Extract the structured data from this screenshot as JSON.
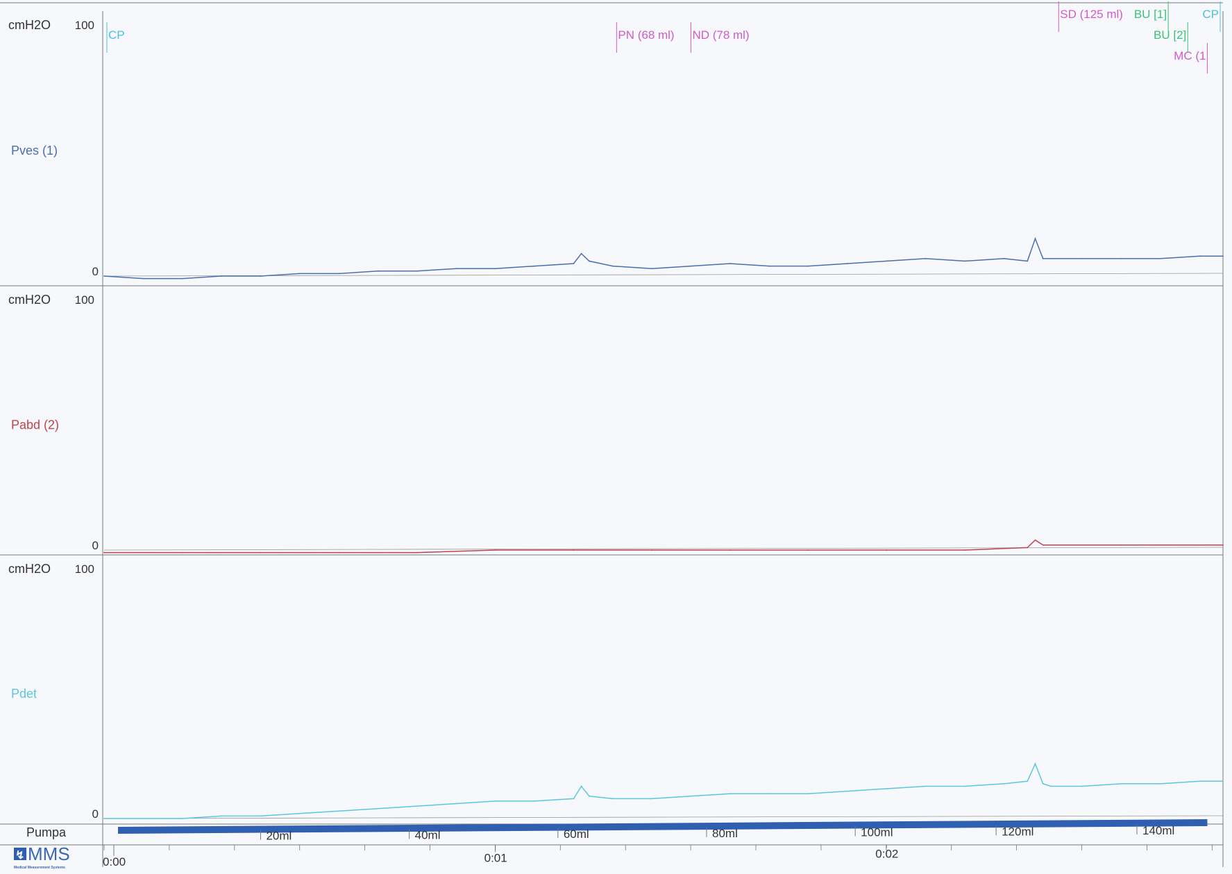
{
  "page": {
    "logo_text": "MMS",
    "logo_subtext": "Medical Measurement Systems"
  },
  "colors": {
    "pves": "#4a6fb0",
    "pabd": "#c0434b",
    "pdet": "#5cc6e0",
    "pump": "#2f5fb0",
    "marker_magenta": "#d35ac8",
    "marker_green": "#3fc07a",
    "marker_cyan": "#4cc0e0",
    "frame": "#777777",
    "text": "#333333"
  },
  "markers": [
    {
      "label": "CP",
      "color": "cyan",
      "t": 0.0
    },
    {
      "label": "PN (68 ml)",
      "color": "magenta",
      "t": 65.5
    },
    {
      "label": "ND (78 ml)",
      "color": "magenta",
      "t": 75.0
    },
    {
      "label": "SD (125 ml)",
      "color": "magenta",
      "t": 122.0
    },
    {
      "label": "BU [1]",
      "color": "green",
      "t": 136.0
    },
    {
      "label": "CP",
      "color": "cyan",
      "t": 140.5
    },
    {
      "label": "BU [2]",
      "color": "green",
      "t": 138.5
    },
    {
      "label": "MC (1",
      "color": "magenta",
      "t": 141.0
    }
  ],
  "chart_data": {
    "type": "line",
    "x_unit": "min:s",
    "x_range": [
      0,
      143
    ],
    "time_ticks": [
      {
        "t": 0,
        "label": "0:00"
      },
      {
        "t": 50,
        "label": "0:01"
      },
      {
        "t": 100,
        "label": "0:02"
      }
    ],
    "panels": [
      {
        "unit": "cmH2O",
        "ymax_label": "100",
        "ymin_label": "0",
        "ylim": [
          0,
          100
        ],
        "series": {
          "name": "Pves (1)",
          "x": [
            0,
            5,
            10,
            15,
            20,
            25,
            30,
            35,
            40,
            45,
            50,
            55,
            60,
            61,
            62,
            65,
            70,
            75,
            80,
            85,
            90,
            95,
            100,
            105,
            110,
            115,
            118,
            119,
            120,
            121,
            125,
            130,
            135,
            140,
            143
          ],
          "y": [
            0,
            -1,
            -1,
            0,
            0,
            1,
            1,
            2,
            2,
            3,
            3,
            4,
            5,
            9,
            6,
            4,
            3,
            4,
            5,
            4,
            4,
            5,
            6,
            7,
            6,
            7,
            6,
            15,
            7,
            7,
            7,
            7,
            7,
            8,
            8
          ]
        }
      },
      {
        "unit": "cmH2O",
        "ymax_label": "100",
        "ymin_label": "0",
        "ylim": [
          0,
          100
        ],
        "series": {
          "name": "Pabd (2)",
          "x": [
            0,
            10,
            20,
            30,
            40,
            50,
            60,
            70,
            80,
            90,
            100,
            110,
            118,
            119,
            120,
            130,
            140,
            143
          ],
          "y": [
            -1,
            -1,
            -1,
            -1,
            -1,
            0,
            0,
            0,
            0,
            0,
            0,
            0,
            1,
            4,
            2,
            2,
            2,
            2
          ]
        }
      },
      {
        "unit": "cmH2O",
        "ymax_label": "100",
        "ymin_label": "0",
        "ylim": [
          0,
          100
        ],
        "series": {
          "name": "Pdet",
          "x": [
            0,
            5,
            10,
            15,
            20,
            25,
            30,
            35,
            40,
            45,
            50,
            55,
            60,
            61,
            62,
            65,
            70,
            75,
            80,
            85,
            90,
            95,
            100,
            105,
            110,
            115,
            118,
            119,
            120,
            121,
            125,
            130,
            135,
            140,
            143
          ],
          "y": [
            0,
            0,
            0,
            1,
            1,
            2,
            3,
            4,
            5,
            6,
            7,
            7,
            8,
            13,
            9,
            8,
            8,
            9,
            10,
            10,
            10,
            11,
            12,
            13,
            13,
            14,
            15,
            22,
            14,
            13,
            13,
            14,
            14,
            15,
            15
          ]
        }
      }
    ],
    "pump": {
      "name": "Pumpa",
      "x_range": [
        0,
        141
      ],
      "volume_ticks": [
        {
          "t": 20,
          "label": "20ml"
        },
        {
          "t": 39,
          "label": "40ml"
        },
        {
          "t": 58,
          "label": "60ml"
        },
        {
          "t": 77,
          "label": "80ml"
        },
        {
          "t": 96,
          "label": "100ml"
        },
        {
          "t": 114,
          "label": "120ml"
        },
        {
          "t": 132,
          "label": "140ml"
        }
      ]
    }
  }
}
